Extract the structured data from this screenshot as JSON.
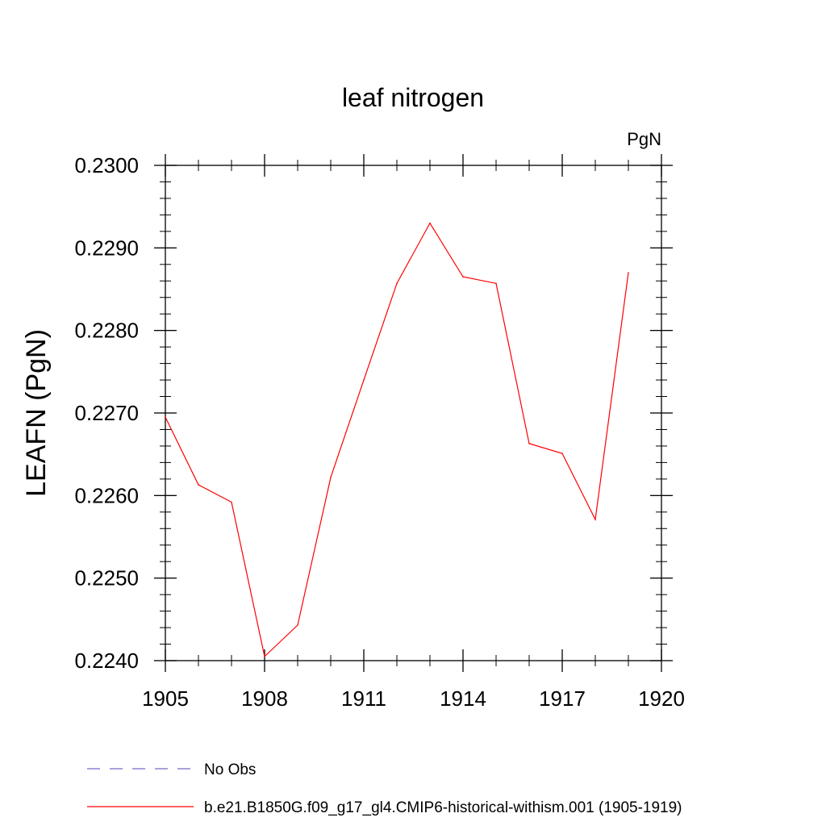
{
  "chart_data": {
    "type": "line",
    "title": "leaf nitrogen",
    "units_label": "PgN",
    "ylabel": "LEAFN  (PgN)",
    "xlabel": "",
    "xlim": [
      1905,
      1920
    ],
    "ylim": [
      0.224,
      0.23
    ],
    "x_ticks": [
      "1905",
      "1908",
      "1911",
      "1914",
      "1917",
      "1920"
    ],
    "y_ticks": [
      "0.2240",
      "0.2250",
      "0.2260",
      "0.2270",
      "0.2280",
      "0.2290",
      "0.2300"
    ],
    "grid": false,
    "legend_position": "bottom",
    "series": [
      {
        "name": "b.e21.B1850G.f09_g17_gl4.CMIP6-historical-withism.001 (1905-1919)",
        "color": "#ff0000",
        "style": "solid",
        "x": [
          1905,
          1906,
          1907,
          1908,
          1909,
          1910,
          1911,
          1912,
          1913,
          1914,
          1915,
          1916,
          1917,
          1918,
          1919
        ],
        "y": [
          0.22695,
          0.22613,
          0.22592,
          0.22405,
          0.22443,
          0.22622,
          0.2274,
          0.22857,
          0.2293,
          0.22865,
          0.22857,
          0.22663,
          0.22651,
          0.22571,
          0.2287
        ]
      },
      {
        "name": "No Obs",
        "color": "#7a68c8",
        "style": "dashed",
        "x": [],
        "y": []
      }
    ]
  }
}
